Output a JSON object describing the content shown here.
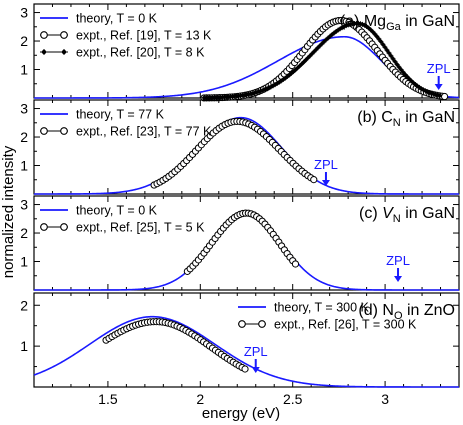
{
  "figure": {
    "ylabel": "normalized intensity",
    "xlabel": "energy (eV)",
    "xticks": [
      "1.5",
      "2",
      "2.5",
      "3"
    ],
    "zpl_label": "ZPL",
    "colors": {
      "theory": "#1a1aff",
      "expt": "#000000",
      "axes": "#000000"
    }
  },
  "chart_data": [
    {
      "type": "line",
      "title": "(a) Mg",
      "title_sub": "Ga",
      "title_rest": " in GaN",
      "xlim": [
        1.1,
        3.4
      ],
      "ylim": [
        0,
        3.3
      ],
      "yticks": [
        1,
        2,
        3
      ],
      "zpl": 3.29,
      "series": [
        {
          "name": "theory, T = 0 K",
          "kind": "theory",
          "peak": 2.78,
          "amp": 2.15,
          "sl": 0.36,
          "sr": 0.2
        },
        {
          "name": "expt., Ref. [19], T = 13 K",
          "kind": "open",
          "peak": 2.76,
          "amp": 2.72,
          "sl": 0.2,
          "sr": 0.2,
          "xmin": 2.02,
          "xmax": 3.33,
          "step": 0.014
        },
        {
          "name": "expt., Ref. [20], T = 8 K",
          "kind": "star",
          "peak": 2.85,
          "amp": 2.62,
          "sl": 0.24,
          "sr": 0.17,
          "xmin": 2.02,
          "xmax": 3.3,
          "step": 0.011
        }
      ]
    },
    {
      "type": "line",
      "title": "(b) C",
      "title_sub": "N",
      "title_rest": " in GaN",
      "xlim": [
        1.1,
        3.4
      ],
      "ylim": [
        0,
        3.3
      ],
      "yticks": [
        1,
        2,
        3
      ],
      "zpl": 2.68,
      "series": [
        {
          "name": "theory, T = 77 K",
          "kind": "theory",
          "peak": 2.22,
          "amp": 2.68,
          "sl": 0.24,
          "sr": 0.22
        },
        {
          "name": "expt., Ref. [23], T = 77 K",
          "kind": "open",
          "peak": 2.2,
          "amp": 2.55,
          "sl": 0.22,
          "sr": 0.23,
          "xmin": 1.75,
          "xmax": 2.62,
          "step": 0.016
        }
      ]
    },
    {
      "type": "line",
      "title": "(c) ",
      "title_italic": "V",
      "title_sub": "N",
      "title_rest": " in GaN",
      "xlim": [
        1.1,
        3.4
      ],
      "ylim": [
        0,
        3.3
      ],
      "yticks": [
        1,
        2,
        3
      ],
      "zpl": 3.07,
      "series": [
        {
          "name": "theory, T = 0 K",
          "kind": "theory",
          "peak": 2.25,
          "amp": 2.72,
          "sl": 0.19,
          "sr": 0.19
        },
        {
          "name": "expt., Ref. [25], T = 5 K",
          "kind": "open",
          "peak": 2.25,
          "amp": 2.7,
          "sl": 0.19,
          "sr": 0.18,
          "xmin": 1.93,
          "xmax": 2.52,
          "step": 0.015
        }
      ]
    },
    {
      "type": "line",
      "title": "(d) N",
      "title_sub": "O",
      "title_rest": " in ZnO",
      "xlim": [
        1.1,
        3.4
      ],
      "ylim": [
        0,
        2.3
      ],
      "yticks": [
        1,
        2
      ],
      "zpl": 2.3,
      "series": [
        {
          "name": "theory, T = 300 K",
          "kind": "theory",
          "peak": 1.74,
          "amp": 1.72,
          "sl": 0.34,
          "sr": 0.34
        },
        {
          "name": "expt., Ref. [26], T = 300 K",
          "kind": "open",
          "peak": 1.76,
          "amp": 1.6,
          "sl": 0.33,
          "sr": 0.3,
          "xmin": 1.49,
          "xmax": 2.25,
          "step": 0.016
        }
      ]
    }
  ]
}
